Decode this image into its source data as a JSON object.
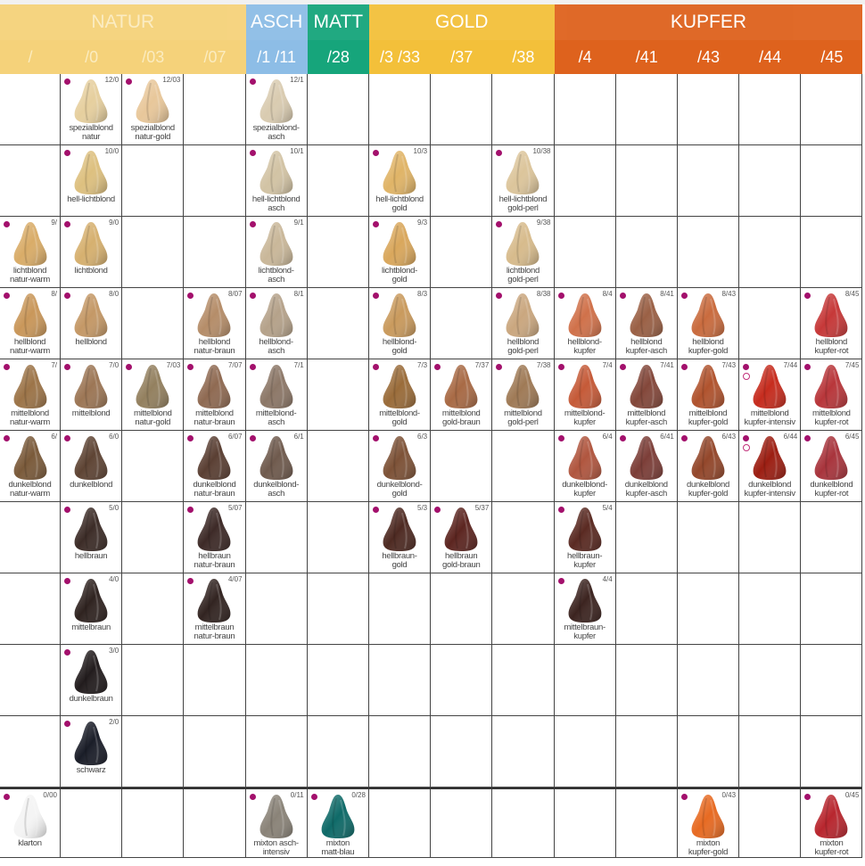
{
  "groups": [
    {
      "name": "NATUR",
      "span": 4,
      "color": "#f5d27a",
      "cls": "natur"
    },
    {
      "name": "ASCH",
      "span": 1,
      "color": "#8dbde6",
      "cls": ""
    },
    {
      "name": "MATT",
      "span": 1,
      "color": "#16a57b",
      "cls": ""
    },
    {
      "name": "GOLD",
      "span": 3,
      "color": "#f3c03a",
      "cls": ""
    },
    {
      "name": "KUPFER",
      "span": 5,
      "color": "#de621d",
      "cls": ""
    }
  ],
  "columns": [
    "/",
    "/0",
    "/03",
    "/07",
    "/1 /11",
    "/28",
    "/3 /33",
    "/37",
    "/38",
    "/4",
    "/41",
    "/43",
    "/44",
    "/45"
  ],
  "rows": [
    [
      null,
      {
        "code": "12/0",
        "label": "spezialblond\nnatur",
        "color": "#e6cf9e"
      },
      {
        "code": "12/03",
        "label": "spezialblond\nnatur-gold",
        "color": "#e8c79a"
      },
      null,
      {
        "code": "12/1",
        "label": "spezialblond-\nasch",
        "color": "#d9cbb0"
      },
      null,
      null,
      null,
      null,
      null,
      null,
      null,
      null,
      null
    ],
    [
      null,
      {
        "code": "10/0",
        "label": "hell-lichtblond",
        "color": "#ddc07f"
      },
      null,
      null,
      {
        "code": "10/1",
        "label": "hell-lichtblond\nasch",
        "color": "#d2c3a4"
      },
      null,
      {
        "code": "10/3",
        "label": "hell-lichtblond\ngold",
        "color": "#e0b467"
      },
      null,
      {
        "code": "10/38",
        "label": "hell-lichtblond\ngold-perl",
        "color": "#dcc59b"
      },
      null,
      null,
      null,
      null,
      null
    ],
    [
      {
        "code": "9/",
        "label": "lichtblond\nnatur-warm",
        "color": "#d9ac68"
      },
      {
        "code": "9/0",
        "label": "lichtblond",
        "color": "#d6b06f"
      },
      null,
      null,
      {
        "code": "9/1",
        "label": "lichtblond-\nasch",
        "color": "#c9b799"
      },
      null,
      {
        "code": "9/3",
        "label": "lichtblond-\ngold",
        "color": "#d9a75c"
      },
      null,
      {
        "code": "9/38",
        "label": "lichtblond\ngold-perl",
        "color": "#d7bb8c"
      },
      null,
      null,
      null,
      null,
      null
    ],
    [
      {
        "code": "8/",
        "label": "hellblond\nnatur-warm",
        "color": "#c9975a"
      },
      {
        "code": "8/0",
        "label": "hellblond",
        "color": "#c49866"
      },
      null,
      {
        "code": "8/07",
        "label": "hellblond\nnatur-braun",
        "color": "#b58d69"
      },
      {
        "code": "8/1",
        "label": "hellblond-\nasch",
        "color": "#b5a28a"
      },
      null,
      {
        "code": "8/3",
        "label": "hellblond-\ngold",
        "color": "#c99a5d"
      },
      null,
      {
        "code": "8/38",
        "label": "hellblond\ngold-perl",
        "color": "#caa77f"
      },
      {
        "code": "8/4",
        "label": "hellblond-\nkupfer",
        "color": "#d0714a"
      },
      {
        "code": "8/41",
        "label": "hellblond\nkupfer-asch",
        "color": "#9a6045"
      },
      {
        "code": "8/43",
        "label": "hellblond\nkupfer-gold",
        "color": "#c96b3e"
      },
      null,
      {
        "code": "8/45",
        "label": "hellblond\nkupfer-rot",
        "color": "#c63838"
      }
    ],
    [
      {
        "code": "7/",
        "label": "mittelblond\nnatur-warm",
        "color": "#9c7448"
      },
      {
        "code": "7/0",
        "label": "mittelblond",
        "color": "#9c7655"
      },
      {
        "code": "7/03",
        "label": "mittelblond\nnatur-gold",
        "color": "#93805f"
      },
      {
        "code": "7/07",
        "label": "mittelblond\nnatur-braun",
        "color": "#8f6a52"
      },
      {
        "code": "7/1",
        "label": "mittelblond-\nasch",
        "color": "#8c7767"
      },
      null,
      {
        "code": "7/3",
        "label": "mittelblond-\ngold",
        "color": "#9a6c3a"
      },
      {
        "code": "7/37",
        "label": "mittelblond\ngold-braun",
        "color": "#a86a45"
      },
      {
        "code": "7/38",
        "label": "mittelblond\ngold-perl",
        "color": "#9f7a56"
      },
      {
        "code": "7/4",
        "label": "mittelblond-\nkupfer",
        "color": "#c55a38"
      },
      {
        "code": "7/41",
        "label": "mittelblond\nkupfer-asch",
        "color": "#83473a"
      },
      {
        "code": "7/43",
        "label": "mittelblond\nkupfer-gold",
        "color": "#b0532e"
      },
      {
        "code": "7/44",
        "label": "mittelblond\nkupfer-intensiv",
        "color": "#c62c1e",
        "ring": true
      },
      {
        "code": "7/45",
        "label": "mittelblond\nkupfer-rot",
        "color": "#b8363a"
      }
    ],
    [
      {
        "code": "6/",
        "label": "dunkelblond\nnatur-warm",
        "color": "#7a5a3a"
      },
      {
        "code": "6/0",
        "label": "dunkelblond",
        "color": "#5e4434"
      },
      null,
      {
        "code": "6/07",
        "label": "dunkelblond\nnatur-braun",
        "color": "#5a3f33"
      },
      {
        "code": "6/1",
        "label": "dunkelblond-\nasch",
        "color": "#6f5a4d"
      },
      null,
      {
        "code": "6/3",
        "label": "dunkelblond-\ngold",
        "color": "#7d5237"
      },
      null,
      null,
      {
        "code": "6/4",
        "label": "dunkelblond-\nkupfer",
        "color": "#b0563f"
      },
      {
        "code": "6/41",
        "label": "dunkelblond\nkupfer-asch",
        "color": "#7c3e38"
      },
      {
        "code": "6/43",
        "label": "dunkelblond\nkupfer-gold",
        "color": "#93472b"
      },
      {
        "code": "6/44",
        "label": "dunkelblond\nkupfer-intensiv",
        "color": "#9c1e12",
        "ring": true
      },
      {
        "code": "6/45",
        "label": "dunkelblond\nkupfer-rot",
        "color": "#a8343c"
      }
    ],
    [
      null,
      {
        "code": "5/0",
        "label": "hellbraun",
        "color": "#3c2c27"
      },
      null,
      {
        "code": "5/07",
        "label": "hellbraun\nnatur-braun",
        "color": "#3d2a27"
      },
      null,
      null,
      {
        "code": "5/3",
        "label": "hellbraun-\ngold",
        "color": "#4e2a22"
      },
      {
        "code": "5/37",
        "label": "hellbraun\ngold-braun",
        "color": "#5c2520"
      },
      null,
      {
        "code": "5/4",
        "label": "hellbraun-\nkupfer",
        "color": "#5a2a22"
      },
      null,
      null,
      null,
      null
    ],
    [
      null,
      {
        "code": "4/0",
        "label": "mittelbraun",
        "color": "#2f2320"
      },
      null,
      {
        "code": "4/07",
        "label": "mittelbraun\nnatur-braun",
        "color": "#322421"
      },
      null,
      null,
      null,
      null,
      null,
      {
        "code": "4/4",
        "label": "mittelbraun-\nkupfer",
        "color": "#3c2420"
      },
      null,
      null,
      null,
      null
    ],
    [
      null,
      {
        "code": "3/0",
        "label": "dunkelbraun",
        "color": "#221c1d"
      },
      null,
      null,
      null,
      null,
      null,
      null,
      null,
      null,
      null,
      null,
      null,
      null
    ],
    [
      null,
      {
        "code": "2/0",
        "label": "schwarz",
        "color": "#1a1d28"
      },
      null,
      null,
      null,
      null,
      null,
      null,
      null,
      null,
      null,
      null,
      null,
      null
    ],
    [
      {
        "code": "0/00",
        "label": "klarton",
        "color": "#f4f4f4"
      },
      null,
      null,
      null,
      {
        "code": "0/11",
        "label": "mixton asch-\nintensiv",
        "color": "#8a8378"
      },
      {
        "code": "0/28",
        "label": "mixton\nmatt-blau",
        "color": "#0f6a68"
      },
      null,
      null,
      null,
      null,
      null,
      {
        "code": "0/43",
        "label": "mixton\nkupfer-gold",
        "color": "#e76a22"
      },
      null,
      {
        "code": "0/45",
        "label": "mixton\nkupfer-rot",
        "color": "#b8262e"
      }
    ]
  ],
  "colors": {
    "dot": "#a3106c",
    "grid_line": "#444444"
  }
}
